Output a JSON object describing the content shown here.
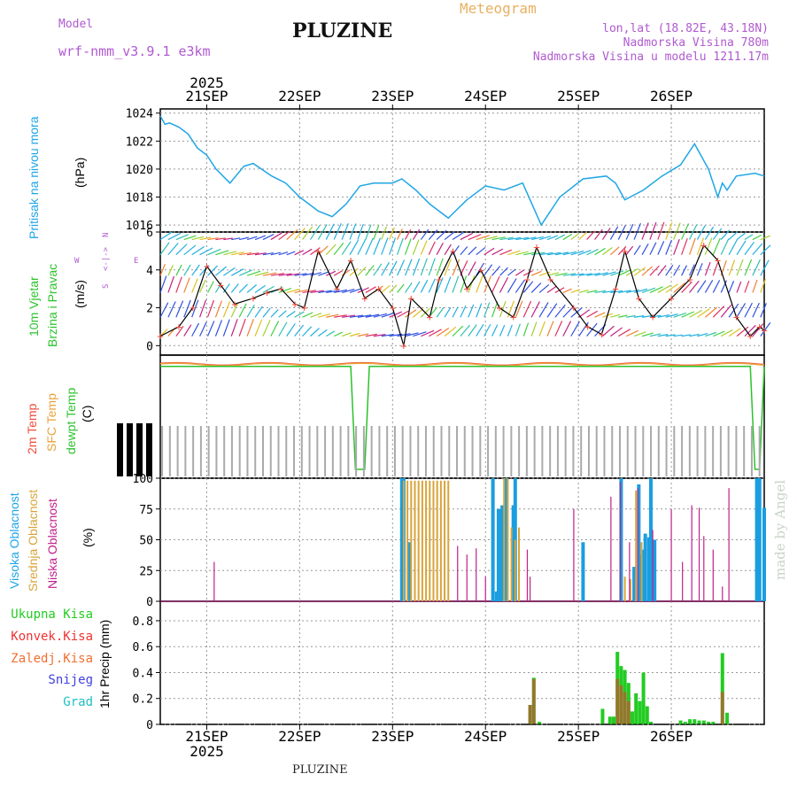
{
  "header": {
    "model_label": "Model",
    "model_name": "wrf-nmm_v3.9.1 e3km",
    "station": "PLUZINE",
    "product": "Meteogram",
    "lonlat": "lon,lat (18.82E, 43.18N)",
    "altitude": "Nadmorska Visina 780m",
    "model_altitude": "Nadmorska Visina u modelu 1211.17m",
    "footer_station": "PLUZINE",
    "watermark": "made by Angel"
  },
  "colors": {
    "pressure": "#1fa6e6",
    "wind_speed": "#000000",
    "temp_2m": "#f04a3a",
    "temp_sfc": "#e9a23b",
    "dewpoint": "#2cc22c",
    "cloud_high": "#1a9ee0",
    "cloud_mid": "#d9a43a",
    "cloud_low": "#c0208a",
    "precip_total": "#22cc22",
    "precip_conv": "#ee3333",
    "precip_frozen": "#f07030",
    "snow": "#4040e0",
    "hail": "#20c0c0",
    "grid": "#999999",
    "model_text": "#b05ad0",
    "meteogram_text": "#e8b060"
  },
  "chart_data": [
    {
      "type": "line",
      "panel": "pressure",
      "title": "Pritisak na nivou mora",
      "ylabel": "(hPa)",
      "ylim": [
        1015.5,
        1024.3
      ],
      "yticks": [
        "1024",
        "1022",
        "1020",
        "1018",
        "1016"
      ],
      "x_unit": "days since 2025-09-20 12:00",
      "x": [
        0,
        0.05,
        0.1,
        0.2,
        0.3,
        0.4,
        0.5,
        0.6,
        0.75,
        0.9,
        1.0,
        1.2,
        1.35,
        1.5,
        1.7,
        1.85,
        2.0,
        2.15,
        2.3,
        2.5,
        2.6,
        2.75,
        2.9,
        3.1,
        3.3,
        3.5,
        3.7,
        3.9,
        4.1,
        4.3,
        4.55,
        4.8,
        4.9,
        5.0,
        5.2,
        5.4,
        5.6,
        5.75,
        5.9,
        6.0,
        6.05,
        6.1,
        6.2,
        6.4,
        6.5
      ],
      "values": [
        1023.8,
        1023.2,
        1023.3,
        1023.0,
        1022.5,
        1021.5,
        1021.0,
        1020.0,
        1019.0,
        1020.2,
        1020.4,
        1019.5,
        1019.0,
        1018.0,
        1017.0,
        1016.6,
        1017.5,
        1018.8,
        1019.0,
        1019.0,
        1019.3,
        1018.5,
        1017.5,
        1016.5,
        1017.8,
        1018.8,
        1018.5,
        1019.0,
        1016.0,
        1018.0,
        1019.3,
        1019.5,
        1019.0,
        1017.8,
        1018.5,
        1019.5,
        1020.3,
        1021.8,
        1020.0,
        1018.0,
        1019.0,
        1018.5,
        1019.5,
        1019.7,
        1019.5
      ]
    },
    {
      "type": "line",
      "panel": "wind",
      "title": "10m Vjetar Brzina i Pravac",
      "ylabel": "(m/s)",
      "compass": "N\n<-|->\nS",
      "compass_we": [
        "W",
        "E"
      ],
      "ylim": [
        -0.5,
        6
      ],
      "yticks": [
        "6",
        "4",
        "2",
        "0"
      ],
      "x_unit": "days since 2025-09-20 12:00",
      "x": [
        0,
        0.2,
        0.35,
        0.5,
        0.65,
        0.8,
        1.0,
        1.15,
        1.3,
        1.45,
        1.55,
        1.7,
        1.9,
        2.05,
        2.2,
        2.35,
        2.5,
        2.62,
        2.7,
        2.9,
        3.0,
        3.15,
        3.3,
        3.45,
        3.65,
        3.8,
        3.95,
        4.05,
        4.2,
        4.45,
        4.6,
        4.75,
        4.9,
        5.0,
        5.15,
        5.3,
        5.5,
        5.7,
        5.85,
        6.0,
        6.2,
        6.35,
        6.45,
        6.5
      ],
      "values": [
        0.5,
        1.0,
        2.0,
        4.2,
        3.2,
        2.2,
        2.5,
        2.8,
        3.0,
        2.2,
        2.0,
        5.0,
        3.0,
        4.5,
        2.5,
        3.0,
        2.0,
        0.0,
        2.5,
        1.5,
        3.5,
        5.0,
        3.0,
        4.0,
        2.0,
        1.5,
        3.5,
        5.2,
        3.5,
        2.0,
        1.0,
        0.6,
        3.0,
        5.0,
        2.5,
        1.5,
        2.5,
        3.5,
        5.3,
        4.5,
        1.5,
        0.5,
        1.0,
        0.8
      ]
    },
    {
      "type": "line",
      "panel": "temperature",
      "title": "2m Temp / SFC Temp / dewpt Temp",
      "series_labels": [
        "2m Temp",
        "SFC Temp",
        "dewpt Temp"
      ],
      "ylabel": "(C)",
      "x_unit": "days since 2025-09-20 12:00",
      "note": "tick labels rendered illegible in source",
      "series": [
        {
          "name": "2m Temp",
          "values": [
            0.8,
            1.0,
            0.8,
            0.6,
            0.9,
            1.0,
            0.7,
            0.8,
            0.9,
            0.7,
            1.0,
            0.6,
            0.9,
            1.0,
            0.7
          ]
        },
        {
          "name": "SFC Temp",
          "values": [
            0.7,
            0.9,
            0.7,
            0.5,
            0.8,
            0.9,
            0.6,
            0.7,
            0.8,
            0.6,
            0.9,
            0.5,
            0.8,
            0.9,
            0.6
          ]
        },
        {
          "name": "dewpt Temp",
          "values": [
            0.3,
            0.35,
            0.3,
            0.3,
            0.35,
            0.3,
            0.3,
            0.3,
            0.35,
            0.3,
            0.35,
            0.3,
            0.3,
            0.35,
            0.3
          ]
        }
      ]
    },
    {
      "type": "bar",
      "panel": "cloud",
      "title": "Visoka Oblacnost / Srednja Oblacnost / Niska Oblacnost",
      "series_labels": [
        "Visoka Oblacnost",
        "Srednja Oblacnost",
        "Niska Oblacnost"
      ],
      "ylabel": "(%)",
      "ylim": [
        0,
        100
      ],
      "yticks": [
        "100",
        "75",
        "50",
        "25",
        "0"
      ],
      "x_unit": "days since 2025-09-20 12:00",
      "series": [
        {
          "name": "Visoka Oblacnost",
          "x": [
            2.6,
            2.62,
            2.68,
            3.58,
            3.62,
            3.64,
            3.66,
            3.68,
            3.72,
            3.8,
            3.82,
            4.55,
            4.96,
            5.1,
            5.15,
            5.18,
            5.2,
            5.22,
            5.26,
            5.28,
            5.32,
            6.42,
            6.45,
            6.5
          ],
          "values": [
            100,
            100,
            48,
            100,
            8,
            75,
            75,
            78,
            100,
            78,
            100,
            48,
            100,
            28,
            95,
            38,
            42,
            55,
            52,
            100,
            50,
            100,
            100,
            76
          ]
        },
        {
          "name": "Srednja Oblacnost",
          "x": [
            2.62,
            2.66,
            2.7,
            2.74,
            2.78,
            2.82,
            2.86,
            2.9,
            2.94,
            2.98,
            3.02,
            3.06,
            3.1,
            3.7,
            3.74,
            3.78,
            3.82,
            3.86,
            5.0,
            5.06,
            5.12,
            5.18
          ],
          "values": [
            98,
            98,
            98,
            98,
            98,
            98,
            98,
            98,
            98,
            98,
            98,
            98,
            98,
            100,
            100,
            60,
            50,
            60,
            20,
            18,
            90,
            48
          ]
        },
        {
          "name": "Niska Oblacnost",
          "x": [
            0.58,
            3.2,
            3.3,
            3.4,
            3.5,
            3.95,
            3.98,
            4.45,
            4.85,
            4.95,
            5.05,
            5.14,
            5.3,
            5.5,
            5.62,
            5.72,
            5.8,
            5.85,
            5.95,
            6.05,
            6.12
          ],
          "values": [
            32,
            45,
            38,
            43,
            20,
            42,
            20,
            75,
            85,
            97,
            48,
            92,
            58,
            75,
            32,
            78,
            76,
            53,
            42,
            12,
            92
          ]
        }
      ]
    },
    {
      "type": "bar",
      "panel": "precip",
      "ylabel": "1hr Precip (mm)",
      "series_labels": [
        "Ukupna Kisa",
        "Konvek.Kisa",
        "Zaledj.Kisa",
        "Snijeg",
        "Grad"
      ],
      "ylim": [
        0,
        0.95
      ],
      "yticks": [
        "0.8",
        "0.6",
        "0.4",
        "0.2",
        "0"
      ],
      "x_unit": "days since 2025-09-20 12:00",
      "series": [
        {
          "name": "Ukupna Kisa",
          "x": [
            3.98,
            4.02,
            4.08,
            4.76,
            4.84,
            4.88,
            4.92,
            4.96,
            5.0,
            5.04,
            5.08,
            5.12,
            5.16,
            5.2,
            5.24,
            5.28,
            5.6,
            5.65,
            5.7,
            5.75,
            5.8,
            5.85,
            5.9,
            5.95,
            6.05,
            6.1
          ],
          "values": [
            0.15,
            0.36,
            0.02,
            0.12,
            0.06,
            0.06,
            0.56,
            0.45,
            0.42,
            0.32,
            0.1,
            0.24,
            0.18,
            0.4,
            0.14,
            0.02,
            0.03,
            0.02,
            0.04,
            0.04,
            0.03,
            0.03,
            0.02,
            0.02,
            0.55,
            0.09
          ]
        },
        {
          "name": "Konvek.Kisa",
          "x": [
            3.98,
            4.02,
            4.92,
            4.96,
            5.0,
            5.04,
            6.05
          ],
          "values": [
            0.15,
            0.35,
            0.35,
            0.3,
            0.25,
            0.18,
            0.25
          ]
        },
        {
          "name": "Zaledj.Kisa",
          "x": [],
          "values": []
        },
        {
          "name": "Snijeg",
          "x": [],
          "values": []
        },
        {
          "name": "Grad",
          "x": [],
          "values": []
        }
      ]
    }
  ],
  "axis": {
    "year": "2025",
    "dates": [
      "21SEP",
      "22SEP",
      "23SEP",
      "24SEP",
      "25SEP",
      "26SEP"
    ],
    "date_positions_days": [
      0.5,
      1.5,
      2.5,
      3.5,
      4.5,
      5.5
    ]
  }
}
